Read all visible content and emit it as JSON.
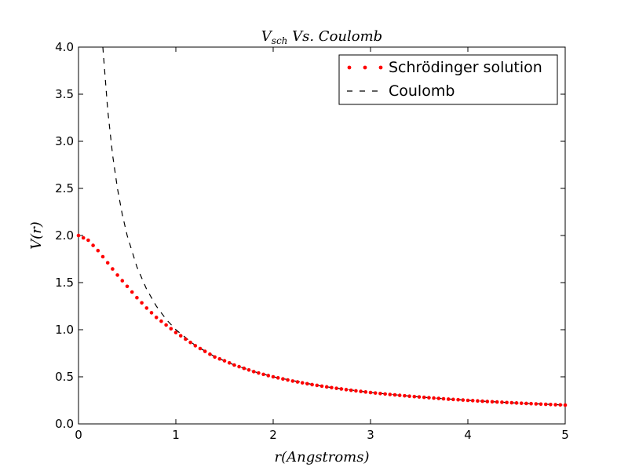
{
  "chart_data": {
    "type": "line",
    "title": "V_sch Vs. Coulomb",
    "title_main": "V",
    "title_sub": "sch",
    "title_rest": " Vs. Coulomb",
    "xlabel": "r(Angstroms)",
    "ylabel": "V(r)",
    "xlim": [
      0,
      5
    ],
    "ylim": [
      0,
      4
    ],
    "x_ticks": [
      "0",
      "1",
      "2",
      "3",
      "4",
      "5"
    ],
    "y_ticks": [
      "0.0",
      "0.5",
      "1.0",
      "1.5",
      "2.0",
      "2.5",
      "3.0",
      "3.5",
      "4.0"
    ],
    "legend_position": "top-right",
    "grid": false,
    "series": [
      {
        "name": "Schrödinger solution",
        "style": "dotted-markers",
        "color": "#ff0000",
        "x": [
          0.0,
          0.1,
          0.2,
          0.3,
          0.4,
          0.5,
          0.6,
          0.7,
          0.8,
          0.9,
          1.0,
          1.1,
          1.2,
          1.3,
          1.4,
          1.5,
          1.6,
          1.7,
          1.8,
          1.9,
          2.0,
          2.2,
          2.4,
          2.6,
          2.8,
          3.0,
          3.2,
          3.4,
          3.6,
          3.8,
          4.0,
          4.2,
          4.4,
          4.6,
          4.8,
          5.0
        ],
        "y": [
          2.0,
          1.95,
          1.84,
          1.71,
          1.58,
          1.46,
          1.34,
          1.23,
          1.13,
          1.05,
          0.97,
          0.9,
          0.83,
          0.77,
          0.71,
          0.67,
          0.625,
          0.59,
          0.555,
          0.526,
          0.5,
          0.455,
          0.417,
          0.385,
          0.357,
          0.333,
          0.3125,
          0.294,
          0.278,
          0.263,
          0.25,
          0.238,
          0.227,
          0.217,
          0.208,
          0.2
        ]
      },
      {
        "name": "Coulomb",
        "style": "dashed",
        "color": "#000000",
        "x": [
          0.25,
          0.3,
          0.35,
          0.4,
          0.45,
          0.5,
          0.6,
          0.7,
          0.8,
          0.9,
          1.0,
          1.2,
          1.4,
          1.6,
          1.8,
          2.0,
          2.5,
          3.0,
          3.5,
          4.0,
          4.5,
          5.0
        ],
        "y": [
          4.0,
          3.333,
          2.857,
          2.5,
          2.222,
          2.0,
          1.667,
          1.429,
          1.25,
          1.111,
          1.0,
          0.833,
          0.714,
          0.625,
          0.556,
          0.5,
          0.4,
          0.333,
          0.286,
          0.25,
          0.222,
          0.2
        ]
      }
    ]
  }
}
